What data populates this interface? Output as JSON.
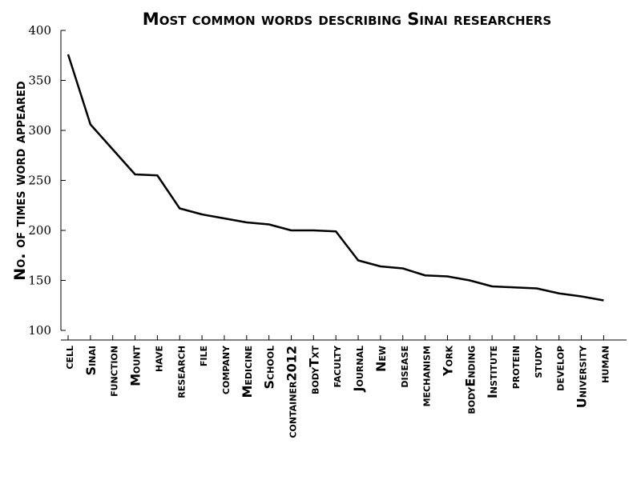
{
  "chart_data": {
    "type": "line",
    "title": "Most common words describing Sinai researchers",
    "xlabel": "",
    "ylabel": "No. of times word appeared",
    "ylim": [
      100,
      400
    ],
    "yticks": [
      "100",
      "150",
      "200",
      "250",
      "300",
      "350",
      "400"
    ],
    "grid": false,
    "categories": [
      "cell",
      "Sinai",
      "function",
      "Mount",
      "have",
      "research",
      "file",
      "company",
      "Medicine",
      "School",
      "container2012",
      "bodyTxt",
      "faculty",
      "Journal",
      "New",
      "disease",
      "mechanism",
      "York",
      "bodyEnding",
      "Institute",
      "protein",
      "study",
      "develop",
      "University",
      "human"
    ],
    "series": [
      {
        "values": [
          376,
          306,
          281,
          256,
          255,
          222,
          216,
          212,
          208,
          206,
          200,
          200,
          199,
          170,
          164,
          162,
          155,
          154,
          150,
          144,
          143,
          142,
          137,
          134,
          130
        ]
      }
    ]
  }
}
